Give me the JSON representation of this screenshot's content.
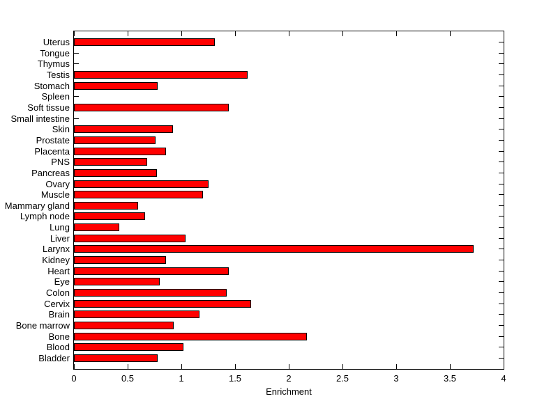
{
  "chart_data": {
    "type": "bar",
    "orientation": "horizontal",
    "title": "",
    "xlabel": "Enrichment",
    "ylabel": "",
    "xlim": [
      0,
      4
    ],
    "xticks": [
      "0",
      "0.5",
      "1",
      "1.5",
      "2",
      "2.5",
      "3",
      "3.5",
      "4"
    ],
    "grid": false,
    "legend": null,
    "bar_color": "#ff0000",
    "bar_edge_color": "#000000",
    "axis_color": "#000000",
    "background_color": "#ffffff",
    "category_order": "top-to-bottom",
    "categories": [
      "Uterus",
      "Tongue",
      "Thymus",
      "Testis",
      "Stomach",
      "Spleen",
      "Soft tissue",
      "Small intestine",
      "Skin",
      "Prostate",
      "Placenta",
      "PNS",
      "Pancreas",
      "Ovary",
      "Muscle",
      "Mammary gland",
      "Lymph node",
      "Lung",
      "Liver",
      "Larynx",
      "Kidney",
      "Heart",
      "Eye",
      "Colon",
      "Cervix",
      "Brain",
      "Bone marrow",
      "Bone",
      "Blood",
      "Bladder"
    ],
    "values": [
      1.31,
      0,
      0,
      1.62,
      0.78,
      0,
      1.44,
      0,
      0.92,
      0.76,
      0.86,
      0.68,
      0.77,
      1.25,
      1.2,
      0.6,
      0.66,
      0.42,
      1.04,
      3.72,
      0.86,
      1.44,
      0.8,
      1.42,
      1.65,
      1.17,
      0.93,
      2.17,
      1.02,
      0.78
    ]
  }
}
